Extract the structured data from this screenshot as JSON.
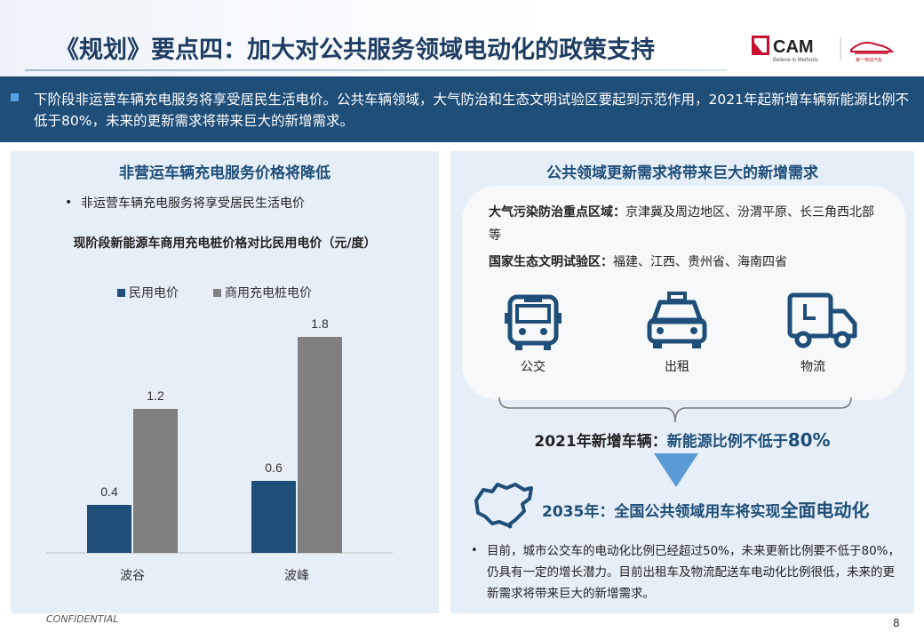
{
  "title": "《规划》要点四：加大对公共服务领域电动化的政策支持",
  "logo": {
    "brand": "CAM",
    "tagline": "Believe in Methods",
    "partner": "第一电动汽车"
  },
  "summary": "下阶段非运营车辆充电服务将享受居民生活电价。公共车辆领域，大气防治和生态文明试验区要起到示范作用，2021年起新增车辆新能源比例不低于80%，未来的更新需求将带来巨大的新增需求。",
  "left": {
    "title": "非营运车辆充电服务价格将降低",
    "bullet": "非运营车辆充电服务将享受居民生活电价",
    "chart_title": "现阶段新能源车商用充电桩价格对比民用电价（元/度）"
  },
  "chart_data": {
    "type": "bar",
    "categories": [
      "波谷",
      "波峰"
    ],
    "series": [
      {
        "name": "民用电价",
        "values": [
          0.4,
          0.6
        ],
        "color": "#1f4e79"
      },
      {
        "name": "商用充电桩电价",
        "values": [
          1.2,
          1.8
        ],
        "color": "#808080"
      }
    ],
    "ylim": [
      0,
      2.0
    ],
    "legend": "top-left",
    "grid": false
  },
  "right": {
    "title": "公共领域更新需求将带来巨大的新增需求",
    "region1_label": "大气污染防治重点区域：",
    "region1_text": "京津冀及周边地区、汾渭平原、长三角西北部等",
    "region2_label": "国家生态文明试验区：",
    "region2_text": "福建、江西、贵州省、海南四省",
    "icons": [
      {
        "name": "bus-icon",
        "label": "公交"
      },
      {
        "name": "taxi-icon",
        "label": "出租"
      },
      {
        "name": "truck-icon",
        "label": "物流"
      }
    ],
    "target_2021_prefix": "2021年新增车辆：",
    "target_2021_mid": "新能源比例不低于",
    "target_2021_num": "80%",
    "target_2035_prefix": "2035年：全国公共领域用车将实现",
    "target_2035_emph": "全面电动化",
    "bottom_text": "目前，城市公交车的电动化比例已经超过50%，未来更新比例要不低于80%，仍具有一定的增长潜力。目前出租车及物流配送车电动化比例很低，未来的更新需求将带来巨大的新增需求。"
  },
  "footer": {
    "confidential": "CONFIDENTIAL",
    "page": "8"
  },
  "colors": {
    "navy": "#1f4e79",
    "gray_bar": "#808080",
    "panel_bg": "#e6eef7",
    "arrow": "#5b9bd5"
  }
}
